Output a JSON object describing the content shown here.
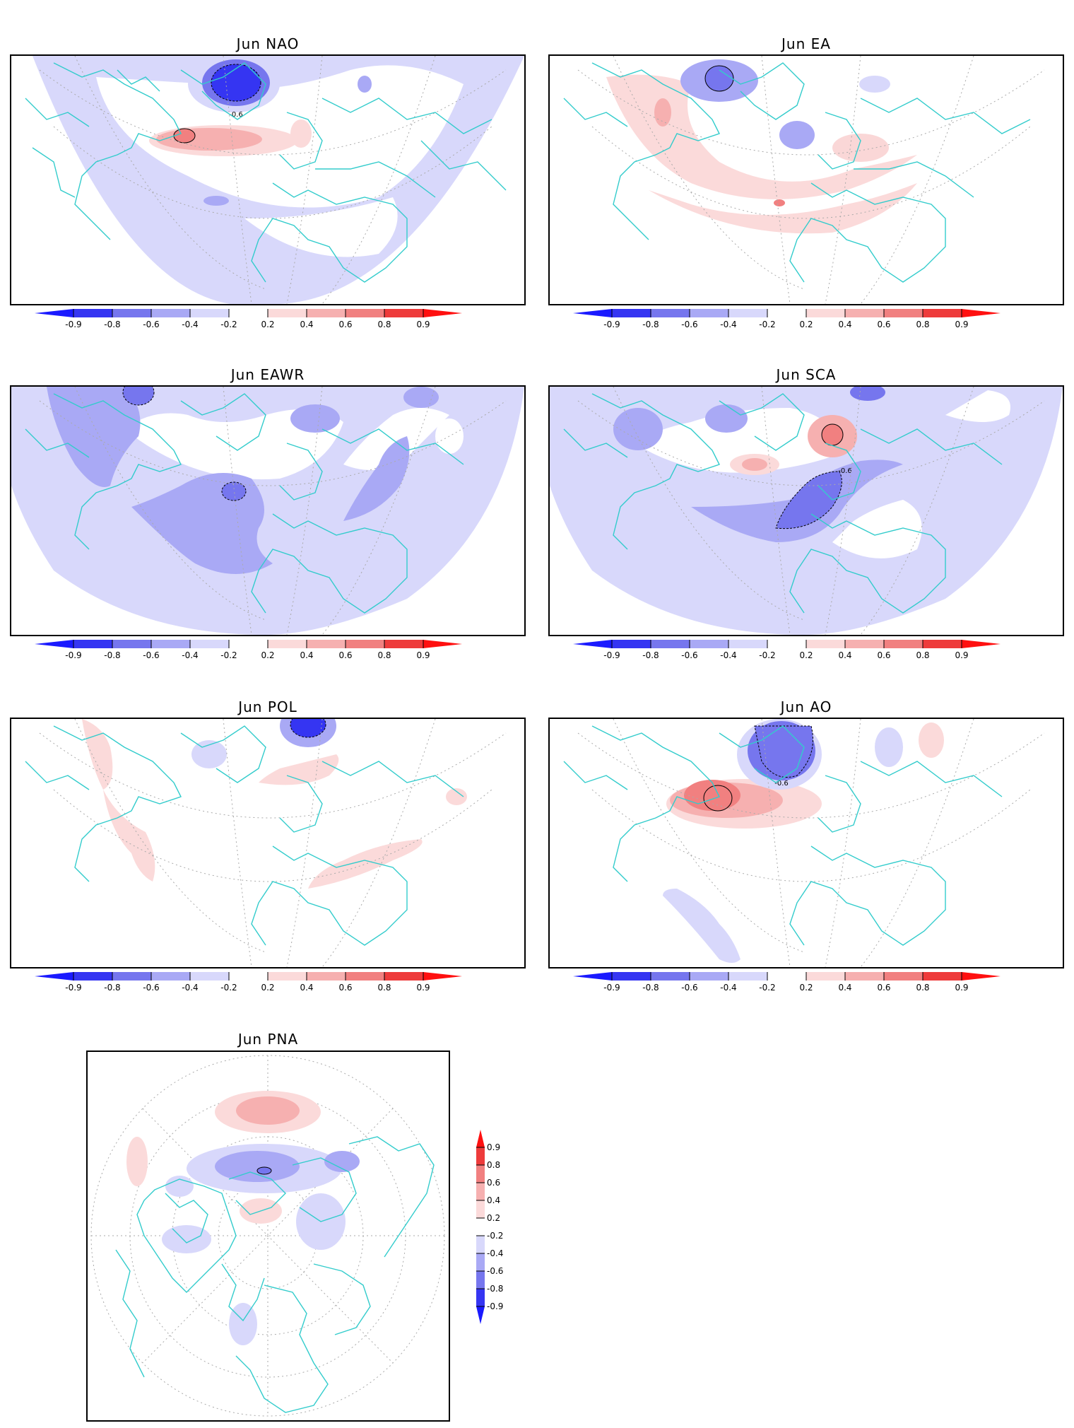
{
  "panels": [
    {
      "title": "Jun  NAO"
    },
    {
      "title": "Jun  EA"
    },
    {
      "title": "Jun  EAWR"
    },
    {
      "title": "Jun  SCA"
    },
    {
      "title": "Jun  POL"
    },
    {
      "title": "Jun  AO"
    },
    {
      "title": "Jun  PNA"
    }
  ],
  "contour_labels": {
    "nao": "-0.6",
    "sca": "-0.6",
    "ao": "-0.6"
  },
  "colorbar": {
    "ticks": [
      "-0.9",
      "-0.8",
      "-0.6",
      "-0.4",
      "-0.2",
      "0.2",
      "0.4",
      "0.6",
      "0.8",
      "0.9"
    ],
    "colors": {
      "neg_09": "#1a1aff",
      "neg_08": "#3535f2",
      "neg_06": "#7676ee",
      "neg_04": "#a9a9f5",
      "neg_02": "#d8d8fb",
      "pos_02": "#fbdada",
      "pos_04": "#f6b0b0",
      "pos_06": "#f18080",
      "pos_08": "#ee3b3b",
      "pos_09": "#ff1010"
    }
  },
  "map_colors": {
    "coast": "#33cccc",
    "grid": "#aaaaaa",
    "frame": "#000000"
  }
}
